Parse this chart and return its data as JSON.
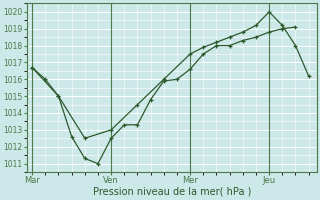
{
  "bg_color": "#cce8e8",
  "grid_color": "#ffffff",
  "line_color": "#2d5a2d",
  "xlabel": "Pression niveau de la mer( hPa )",
  "ylim": [
    1010.5,
    1020.5
  ],
  "yticks": [
    1011,
    1012,
    1013,
    1014,
    1015,
    1016,
    1017,
    1018,
    1019,
    1020
  ],
  "xtick_labels": [
    "Mar",
    "Ven",
    "Mer",
    "Jeu"
  ],
  "xtick_positions": [
    0,
    3,
    6,
    9
  ],
  "vline_positions": [
    0,
    3,
    6,
    9
  ],
  "xlim": [
    -0.2,
    10.8
  ],
  "line1_x": [
    0,
    0.5,
    1.0,
    1.5,
    2.0,
    2.5,
    3.0,
    3.5,
    4.0,
    4.5,
    5.0,
    5.5,
    6.0,
    6.5,
    7.0,
    7.5,
    8.0,
    8.5,
    9.0,
    9.5,
    10.0
  ],
  "line1_y": [
    1016.7,
    1016.0,
    1015.0,
    1012.6,
    1011.3,
    1011.0,
    1012.5,
    1013.3,
    1013.3,
    1014.8,
    1015.9,
    1016.0,
    1016.6,
    1017.5,
    1018.0,
    1018.0,
    1018.3,
    1018.5,
    1018.8,
    1019.0,
    1019.1
  ],
  "line2_x": [
    0,
    1.0,
    2.0,
    3.0,
    4.0,
    5.0,
    6.0,
    6.5,
    7.0,
    7.5,
    8.0,
    8.5,
    9.0,
    9.5,
    10.0,
    10.5
  ],
  "line2_y": [
    1016.7,
    1015.0,
    1012.5,
    1013.0,
    1014.5,
    1016.0,
    1017.5,
    1017.9,
    1018.2,
    1018.5,
    1018.8,
    1019.2,
    1020.0,
    1019.2,
    1018.0,
    1016.2
  ]
}
